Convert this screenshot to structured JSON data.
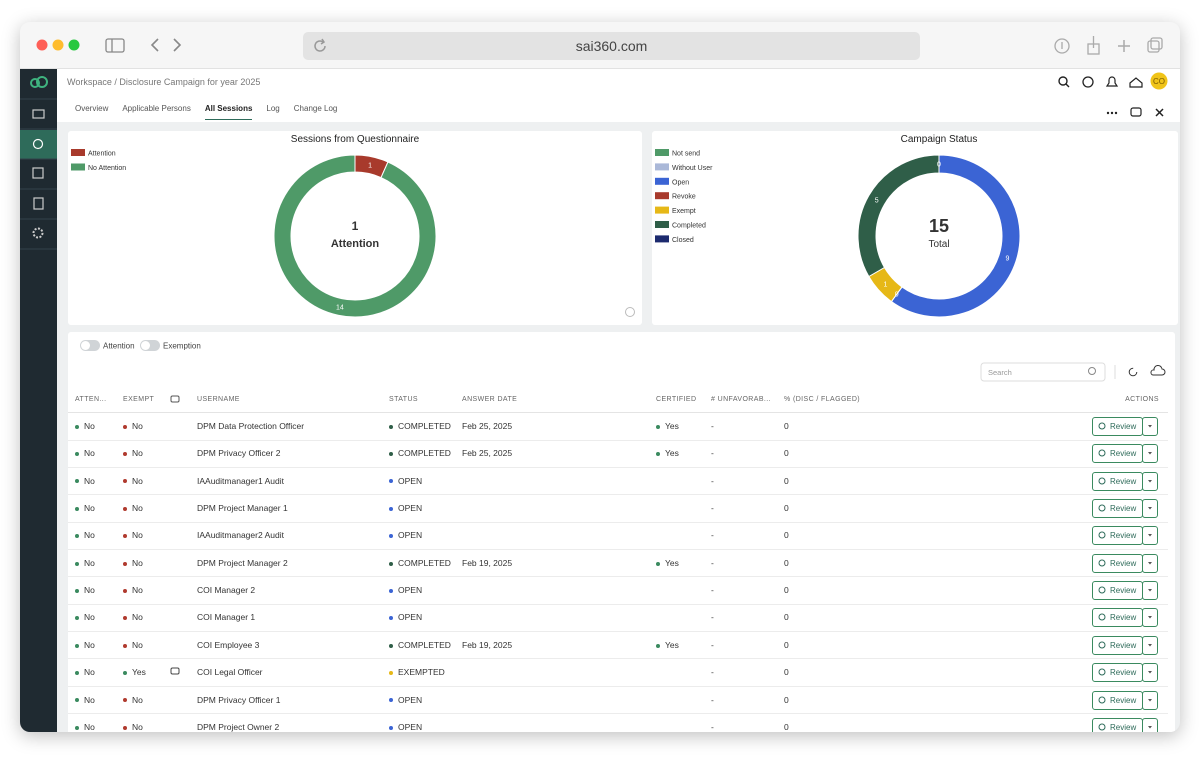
{
  "browser": {
    "url": "sai360.com"
  },
  "header": {
    "breadcrumb": "Workspace / Disclosure Campaign for year 2025",
    "avatar": "CO"
  },
  "tabs": [
    "Overview",
    "Applicable Persons",
    "All Sessions",
    "Log",
    "Change Log"
  ],
  "chart_data": [
    {
      "type": "donut",
      "title": "Sessions from Questionnaire",
      "categories": [
        "Attention",
        "No Attention"
      ],
      "values": [
        1,
        14
      ],
      "colors": [
        "#a83a2c",
        "#4f9a68"
      ],
      "center_value": 1,
      "center_label": "Attention"
    },
    {
      "type": "donut",
      "title": "Campaign Status",
      "categories": [
        "Not send",
        "Without User",
        "Open",
        "Revoke",
        "Exempt",
        "Completed",
        "Closed"
      ],
      "values": [
        0,
        null,
        9,
        0,
        1,
        5,
        null
      ],
      "colors": [
        "#4f9a68",
        "#aab8d8",
        "#3b64d4",
        "#a83a2c",
        "#e6b817",
        "#2f5e48",
        "#1c2a6e"
      ],
      "center_value": 15,
      "center_label": "Total"
    }
  ],
  "filters": [
    "Attention",
    "Exemption"
  ],
  "search_placeholder": "Search",
  "table": {
    "columns": [
      "ATTEN...",
      "EXEMPT",
      null,
      "USERNAME",
      "STATUS",
      "ANSWER DATE",
      "CERTIFIED",
      "# UNFAVORAB...",
      "% (DISC / FLAGGED)",
      "ACTIONS"
    ],
    "dot_colors": {
      "0": {
        "No": "#3a8a5f"
      },
      "1": {
        "No": "#b03a2e",
        "Yes": "#3a8a5f"
      },
      "4": {
        "COMPLETED": "#2f5e48",
        "OPEN": "#3b64d4",
        "EXEMPTED": "#e6b817"
      },
      "6": {
        "Yes": "#3a8a5f"
      }
    },
    "rows": [
      [
        "No",
        "No",
        false,
        "DPM Data Protection Officer",
        "COMPLETED",
        "Feb 25, 2025",
        "Yes",
        "-",
        0,
        "Review"
      ],
      [
        "No",
        "No",
        false,
        "DPM Privacy Officer 2",
        "COMPLETED",
        "Feb 25, 2025",
        "Yes",
        "-",
        0,
        "Review"
      ],
      [
        "No",
        "No",
        false,
        "IAAuditmanager1 Audit",
        "OPEN",
        null,
        null,
        "-",
        0,
        "Review"
      ],
      [
        "No",
        "No",
        false,
        "DPM Project Manager 1",
        "OPEN",
        null,
        null,
        "-",
        0,
        "Review"
      ],
      [
        "No",
        "No",
        false,
        "IAAuditmanager2 Audit",
        "OPEN",
        null,
        null,
        "-",
        0,
        "Review"
      ],
      [
        "No",
        "No",
        false,
        "DPM Project Manager 2",
        "COMPLETED",
        "Feb 19, 2025",
        "Yes",
        "-",
        0,
        "Review"
      ],
      [
        "No",
        "No",
        false,
        "COI Manager 2",
        "OPEN",
        null,
        null,
        "-",
        0,
        "Review"
      ],
      [
        "No",
        "No",
        false,
        "COI Manager 1",
        "OPEN",
        null,
        null,
        "-",
        0,
        "Review"
      ],
      [
        "No",
        "No",
        false,
        "COI Employee 3",
        "COMPLETED",
        "Feb 19, 2025",
        "Yes",
        "-",
        0,
        "Review"
      ],
      [
        "No",
        "Yes",
        true,
        "COI Legal Officer",
        "EXEMPTED",
        null,
        null,
        "-",
        0,
        "Review"
      ],
      [
        "No",
        "No",
        false,
        "DPM Privacy Officer 1",
        "OPEN",
        null,
        null,
        "-",
        0,
        "Review"
      ],
      [
        "No",
        "No",
        false,
        "DPM Project Owner 2",
        "OPEN",
        null,
        null,
        "-",
        0,
        "Review"
      ]
    ]
  }
}
